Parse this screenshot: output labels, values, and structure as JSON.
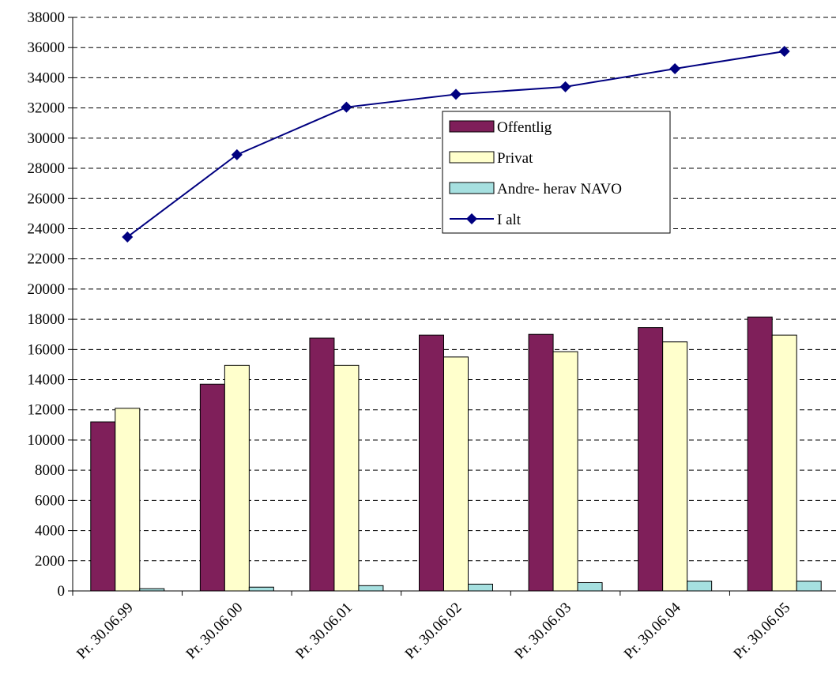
{
  "chart_data": {
    "type": "bar",
    "categories": [
      "Pr. 30.06.99",
      "Pr. 30.06.00",
      "Pr. 30.06.01",
      "Pr. 30.06.02",
      "Pr. 30.06.03",
      "Pr. 30.06.04",
      "Pr. 30.06.05"
    ],
    "series": [
      {
        "name": "Offentlig",
        "kind": "bar",
        "color": "#7f1f5a",
        "values": [
          11200,
          13700,
          16750,
          16950,
          17000,
          17450,
          18150
        ]
      },
      {
        "name": "Privat",
        "kind": "bar",
        "color": "#ffffcc",
        "values": [
          12100,
          14950,
          14950,
          15500,
          15850,
          16500,
          16950
        ]
      },
      {
        "name": "Andre- herav NAVO",
        "kind": "bar",
        "color": "#a6e0e0",
        "values": [
          150,
          250,
          350,
          450,
          550,
          650,
          650
        ]
      },
      {
        "name": "I alt",
        "kind": "line",
        "color": "#000080",
        "marker": "diamond",
        "values": [
          23450,
          28900,
          32050,
          32900,
          33400,
          34600,
          35750
        ]
      }
    ],
    "title": "",
    "xlabel": "",
    "ylabel": "",
    "ylim": [
      0,
      38000
    ],
    "yticks": [
      0,
      2000,
      4000,
      6000,
      8000,
      10000,
      12000,
      14000,
      16000,
      18000,
      20000,
      22000,
      24000,
      26000,
      28000,
      30000,
      32000,
      34000,
      36000,
      38000
    ],
    "grid": "horizontal-dashed",
    "legend_position": "center-right"
  }
}
